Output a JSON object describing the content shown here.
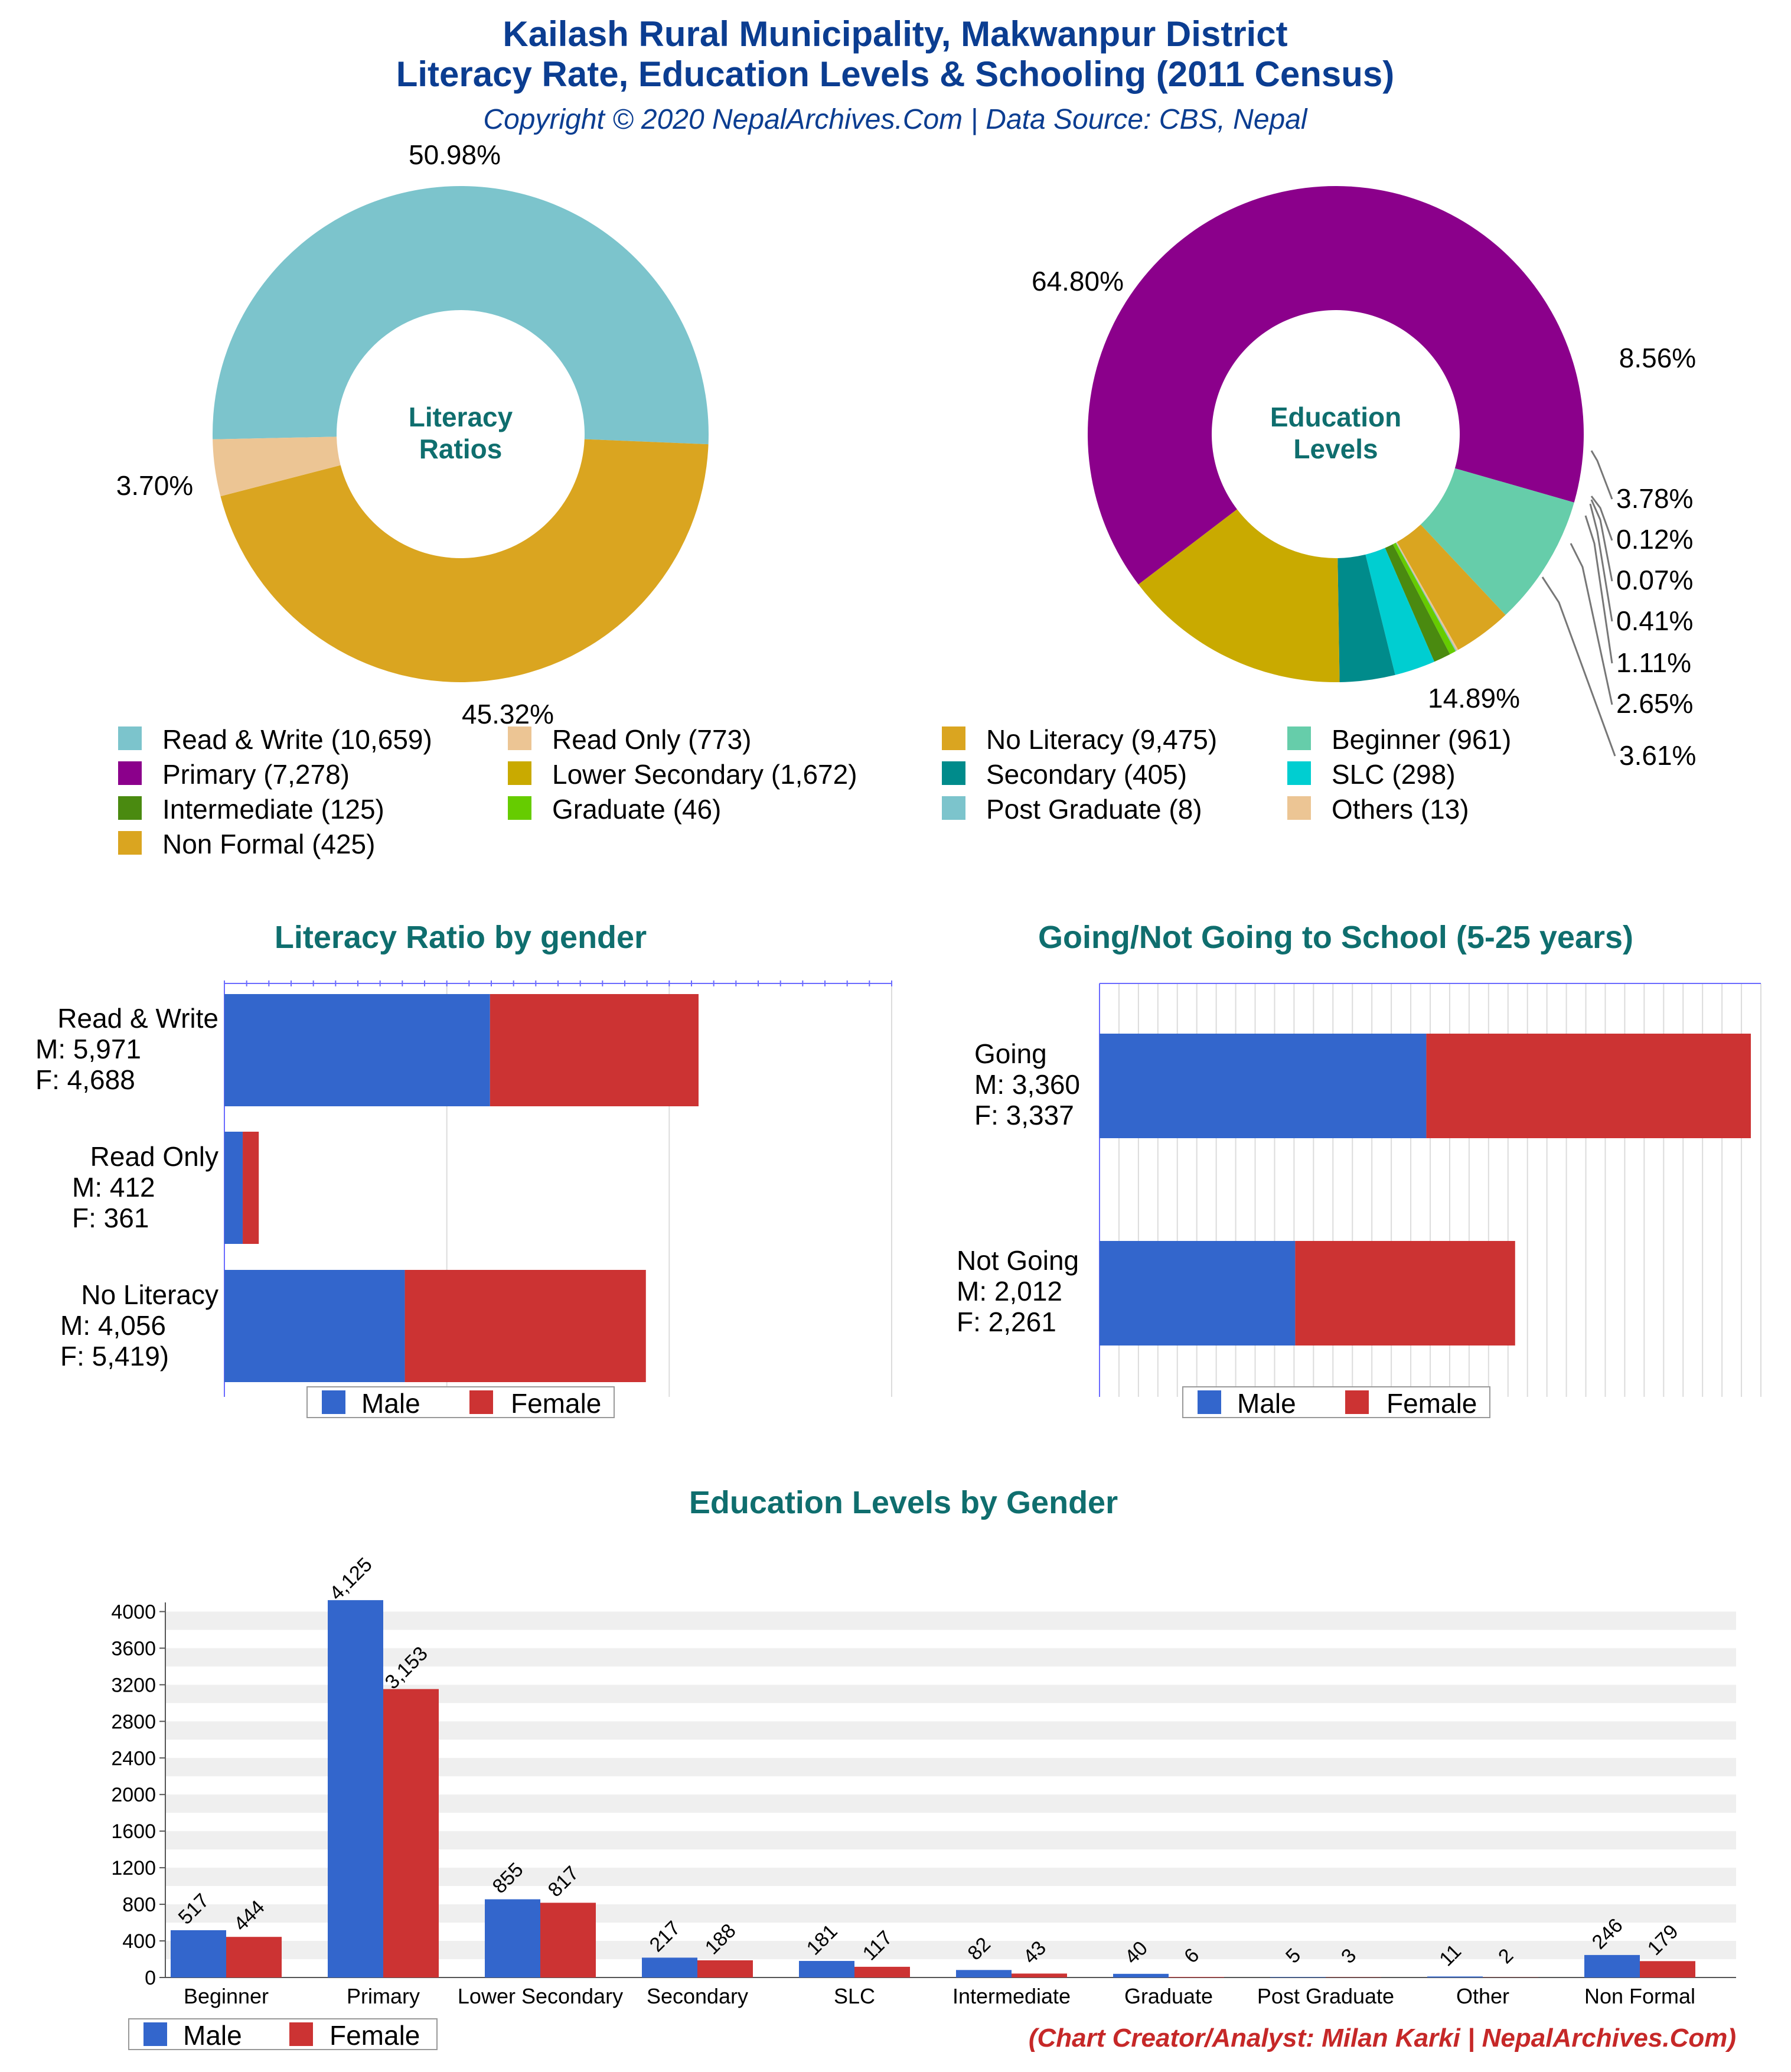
{
  "header": {
    "title_line1": "Kailash Rural Municipality, Makwanpur District",
    "title_line2": "Literacy Rate, Education Levels & Schooling (2011 Census)",
    "copyright": "Copyright © 2020 NepalArchives.Com | Data Source: CBS, Nepal"
  },
  "footer": {
    "credit": "(Chart Creator/Analyst: Milan Karki | NepalArchives.Com)"
  },
  "colors": {
    "title_blue": "#0b3d91",
    "teal_title": "#0f6e6e",
    "male": "#3366cc",
    "female": "#cc3333",
    "credit_red": "#c62828"
  },
  "legend_items": [
    {
      "label": "Read & Write (10,659)",
      "color": "#7cc4cc"
    },
    {
      "label": "Read Only (773)",
      "color": "#ecc594"
    },
    {
      "label": "No Literacy (9,475)",
      "color": "#daa520"
    },
    {
      "label": "Beginner (961)",
      "color": "#66cdaa"
    },
    {
      "label": "Primary (7,278)",
      "color": "#8b008b"
    },
    {
      "label": "Lower Secondary (1,672)",
      "color": "#c9aa00"
    },
    {
      "label": "Secondary (405)",
      "color": "#008b8b"
    },
    {
      "label": "SLC (298)",
      "color": "#00ced1"
    },
    {
      "label": "Intermediate (125)",
      "color": "#4a8a10"
    },
    {
      "label": "Graduate (46)",
      "color": "#66cc00"
    },
    {
      "label": "Post Graduate (8)",
      "color": "#7cc4cc"
    },
    {
      "label": "Others (13)",
      "color": "#ecc594"
    },
    {
      "label": "Non Formal (425)",
      "color": "#daa520"
    }
  ],
  "gender_legend": {
    "male": "Male",
    "female": "Female"
  },
  "chart_data": [
    {
      "type": "pie",
      "title": "Literacy Ratios",
      "slices": [
        {
          "label": "Read & Write",
          "value": 10659,
          "percent_label": "50.98%",
          "color": "#7cc4cc"
        },
        {
          "label": "No Literacy",
          "value": 9475,
          "percent_label": "45.32%",
          "color": "#daa520"
        },
        {
          "label": "Read Only",
          "value": 773,
          "percent_label": "3.70%",
          "color": "#ecc594"
        }
      ]
    },
    {
      "type": "pie",
      "title": "Education Levels",
      "slices": [
        {
          "label": "Primary",
          "value": 7278,
          "percent_label": "64.80%",
          "color": "#8b008b"
        },
        {
          "label": "Beginner",
          "value": 961,
          "percent_label": "8.56%",
          "color": "#66cdaa"
        },
        {
          "label": "Non Formal",
          "value": 425,
          "percent_label": "3.78%",
          "color": "#daa520"
        },
        {
          "label": "Others",
          "value": 13,
          "percent_label": "0.12%",
          "color": "#ecc594"
        },
        {
          "label": "Post Graduate",
          "value": 8,
          "percent_label": "0.07%",
          "color": "#7cc4cc"
        },
        {
          "label": "Graduate",
          "value": 46,
          "percent_label": "0.41%",
          "color": "#66cc00"
        },
        {
          "label": "Intermediate",
          "value": 125,
          "percent_label": "1.11%",
          "color": "#4a8a10"
        },
        {
          "label": "SLC",
          "value": 298,
          "percent_label": "2.65%",
          "color": "#00ced1"
        },
        {
          "label": "Secondary",
          "value": 405,
          "percent_label": "3.61%",
          "color": "#008b8b"
        },
        {
          "label": "Lower Secondary",
          "value": 1672,
          "percent_label": "14.89%",
          "color": "#c9aa00"
        }
      ]
    },
    {
      "type": "bar",
      "orientation": "horizontal-stacked",
      "title": "Literacy Ratio by gender",
      "categories": [
        {
          "name": "Read & Write",
          "m_label": "M: 5,971",
          "f_label": "F: 4,688"
        },
        {
          "name": "Read Only",
          "m_label": "M: 412",
          "f_label": "F: 361"
        },
        {
          "name": "No Literacy",
          "m_label": "M: 4,056",
          "f_label": "F: 5,419)"
        }
      ],
      "series": [
        {
          "name": "Male",
          "values": [
            5971,
            412,
            4056
          ]
        },
        {
          "name": "Female",
          "values": [
            4688,
            361,
            5419
          ]
        }
      ],
      "xlim": [
        0,
        15000
      ],
      "legend": "bottom"
    },
    {
      "type": "bar",
      "orientation": "horizontal-stacked",
      "title": "Going/Not Going to School (5-25 years)",
      "categories": [
        {
          "name": "Going",
          "m_label": "M: 3,360",
          "f_label": "F: 3,337"
        },
        {
          "name": "Not Going",
          "m_label": "M: 2,012",
          "f_label": "F: 2,261"
        }
      ],
      "series": [
        {
          "name": "Male",
          "values": [
            3360,
            2012
          ]
        },
        {
          "name": "Female",
          "values": [
            3337,
            2261
          ]
        }
      ],
      "xlim": [
        0,
        6800
      ],
      "legend": "bottom"
    },
    {
      "type": "bar",
      "title": "Education Levels by Gender",
      "categories": [
        "Beginner",
        "Primary",
        "Lower Secondary",
        "Secondary",
        "SLC",
        "Intermediate",
        "Graduate",
        "Post Graduate",
        "Other",
        "Non Formal"
      ],
      "series": [
        {
          "name": "Male",
          "values": [
            517,
            4125,
            855,
            217,
            181,
            82,
            40,
            5,
            11,
            246
          ],
          "labels": [
            "517",
            "4,125",
            "855",
            "217",
            "181",
            "82",
            "40",
            "5",
            "11",
            "246"
          ]
        },
        {
          "name": "Female",
          "values": [
            444,
            3153,
            817,
            188,
            117,
            43,
            6,
            3,
            2,
            179
          ],
          "labels": [
            "444",
            "3,153",
            "817",
            "188",
            "117",
            "43",
            "6",
            "3",
            "2",
            "179"
          ]
        }
      ],
      "yticks": [
        "0",
        "400",
        "800",
        "1200",
        "1600",
        "2000",
        "2400",
        "2800",
        "3200",
        "3600",
        "4000"
      ],
      "ylim": [
        0,
        4100
      ],
      "legend": "bottom-left"
    }
  ]
}
